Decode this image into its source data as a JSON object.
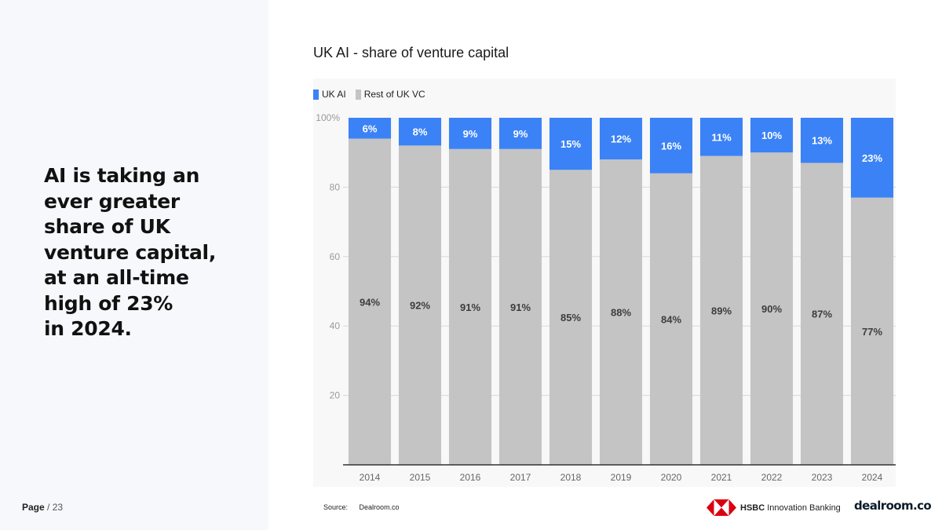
{
  "headline": "AI is taking an\never greater\nshare of UK\nventure capital,\nat an all-time\nhigh of 23%\nin 2024.",
  "page": {
    "word": "Page",
    "separator": "/",
    "number": "23"
  },
  "source": {
    "label": "Source:",
    "value": "Dealroom.co"
  },
  "logos": {
    "hsbc_bold": "HSBC",
    "hsbc_rest": " Innovation Banking",
    "dealroom": "dealroom.co"
  },
  "colors": {
    "ai": "#3b82f6",
    "rest": "#c4c4c4",
    "hsbc_red": "#db0011"
  },
  "chart_data": {
    "type": "bar",
    "stacked": true,
    "title": "UK AI - share of venture capital",
    "categories": [
      "2014",
      "2015",
      "2016",
      "2017",
      "2018",
      "2019",
      "2020",
      "2021",
      "2022",
      "2023",
      "2024"
    ],
    "series": [
      {
        "name": "Rest of UK VC",
        "values": [
          94,
          92,
          91,
          91,
          85,
          88,
          84,
          89,
          90,
          87,
          77
        ],
        "color": "#c4c4c4"
      },
      {
        "name": "UK AI",
        "values": [
          6,
          8,
          9,
          9,
          15,
          12,
          16,
          11,
          10,
          13,
          23
        ],
        "color": "#3b82f6"
      }
    ],
    "legend": [
      "UK AI",
      "Rest of UK VC"
    ],
    "yticks": [
      20,
      40,
      60,
      80
    ],
    "ytop_label": "100%",
    "ylim": [
      0,
      100
    ],
    "xlabel": "",
    "ylabel": "",
    "grid": true,
    "value_suffix": "%"
  }
}
